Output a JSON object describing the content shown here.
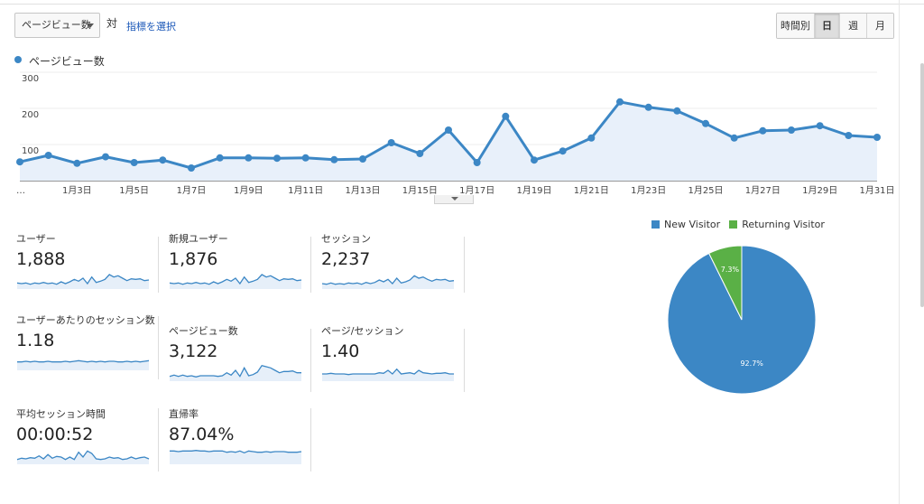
{
  "controls": {
    "metric_dropdown": "ページビュー数",
    "vs": "対",
    "select_metric_link": "指標を選択",
    "periods": [
      "時間別",
      "日",
      "週",
      "月"
    ],
    "active_period": "日"
  },
  "main_chart": {
    "legend_label": "ページビュー数",
    "series_color": "#3c87c5"
  },
  "chart_data": {
    "type": "line",
    "series": [
      {
        "name": "ページビュー数",
        "values": [
          52,
          70,
          48,
          66,
          50,
          57,
          35,
          63,
          63,
          62,
          63,
          58,
          60,
          105,
          75,
          140,
          50,
          178,
          57,
          82,
          118,
          218,
          203,
          193,
          158,
          118,
          138,
          140,
          152,
          125,
          120
        ]
      }
    ],
    "x": [
      "1月1日",
      "1月2日",
      "1月3日",
      "1月4日",
      "1月5日",
      "1月6日",
      "1月7日",
      "1月8日",
      "1月9日",
      "1月10日",
      "1月11日",
      "1月12日",
      "1月13日",
      "1月14日",
      "1月15日",
      "1月16日",
      "1月17日",
      "1月18日",
      "1月19日",
      "1月20日",
      "1月21日",
      "1月22日",
      "1月23日",
      "1月24日",
      "1月25日",
      "1月26日",
      "1月27日",
      "1月28日",
      "1月29日",
      "1月30日",
      "1月31日"
    ],
    "x_tick_labels": [
      "…",
      "1月3日",
      "1月5日",
      "1月7日",
      "1月9日",
      "1月11日",
      "1月13日",
      "1月15日",
      "1月17日",
      "1月19日",
      "1月21日",
      "1月23日",
      "1月25日",
      "1月27日",
      "1月29日",
      "1月31日"
    ],
    "y_tick_labels": [
      "100",
      "200",
      "300"
    ],
    "ylim": [
      0,
      300
    ],
    "grid": true
  },
  "metrics": [
    {
      "label": "ユーザー",
      "value": "1,888",
      "spark": [
        10,
        9,
        10,
        8,
        10,
        9,
        11,
        9,
        10,
        8,
        12,
        9,
        12,
        16,
        13,
        18,
        9,
        20,
        11,
        13,
        16,
        24,
        20,
        22,
        18,
        14,
        17,
        16,
        17,
        14,
        15
      ]
    },
    {
      "label": "新規ユーザー",
      "value": "1,876",
      "spark": [
        10,
        9,
        10,
        8,
        10,
        9,
        11,
        9,
        10,
        8,
        12,
        9,
        12,
        16,
        13,
        18,
        9,
        20,
        11,
        13,
        16,
        24,
        20,
        22,
        18,
        14,
        17,
        16,
        17,
        14,
        15
      ]
    },
    {
      "label": "セッション",
      "value": "2,237",
      "spark": [
        9,
        8,
        10,
        8,
        9,
        8,
        10,
        9,
        10,
        8,
        11,
        9,
        11,
        15,
        12,
        16,
        9,
        18,
        10,
        12,
        15,
        22,
        18,
        20,
        16,
        13,
        16,
        15,
        16,
        13,
        14
      ]
    },
    {
      "label": "ユーザーあたりのセッション数",
      "value": "1.18",
      "spark": [
        14,
        14,
        15,
        14,
        15,
        14,
        14,
        15,
        14,
        14,
        14,
        15,
        14,
        15,
        16,
        15,
        14,
        15,
        14,
        15,
        14,
        15,
        15,
        14,
        14,
        15,
        14,
        15,
        14,
        15,
        16
      ]
    },
    {
      "label": "ページビュー数",
      "value": "3,122",
      "spark": [
        8,
        10,
        8,
        10,
        8,
        9,
        7,
        9,
        9,
        9,
        9,
        8,
        9,
        14,
        10,
        18,
        8,
        22,
        9,
        11,
        15,
        26,
        24,
        22,
        18,
        14,
        16,
        16,
        17,
        14,
        14
      ]
    },
    {
      "label": "ページ/セッション",
      "value": "1.40",
      "spark": [
        12,
        12,
        13,
        12,
        12,
        12,
        11,
        12,
        12,
        12,
        12,
        12,
        12,
        14,
        13,
        18,
        12,
        20,
        12,
        13,
        14,
        12,
        18,
        14,
        13,
        12,
        13,
        13,
        14,
        12,
        12
      ]
    },
    {
      "label": "平均セッション時間",
      "value": "00:00:52",
      "spark": [
        8,
        10,
        9,
        11,
        10,
        14,
        9,
        16,
        10,
        13,
        12,
        8,
        12,
        8,
        20,
        12,
        22,
        18,
        9,
        8,
        9,
        12,
        10,
        11,
        8,
        9,
        12,
        9,
        11,
        12,
        9
      ]
    },
    {
      "label": "直帰率",
      "value": "87.04%",
      "spark": [
        22,
        22,
        21,
        22,
        22,
        22,
        23,
        22,
        22,
        21,
        22,
        22,
        22,
        20,
        21,
        20,
        22,
        19,
        22,
        21,
        20,
        20,
        21,
        20,
        21,
        21,
        21,
        20,
        20,
        20,
        21
      ]
    }
  ],
  "pie": {
    "legend": [
      {
        "name": "New Visitor",
        "color": "#3c87c5"
      },
      {
        "name": "Returning Visitor",
        "color": "#5ab046"
      }
    ],
    "slices": [
      {
        "name": "New Visitor",
        "value": 92.7,
        "label": "92.7%",
        "color": "#3c87c5"
      },
      {
        "name": "Returning Visitor",
        "value": 7.3,
        "label": "7.3%",
        "color": "#5ab046"
      }
    ]
  }
}
